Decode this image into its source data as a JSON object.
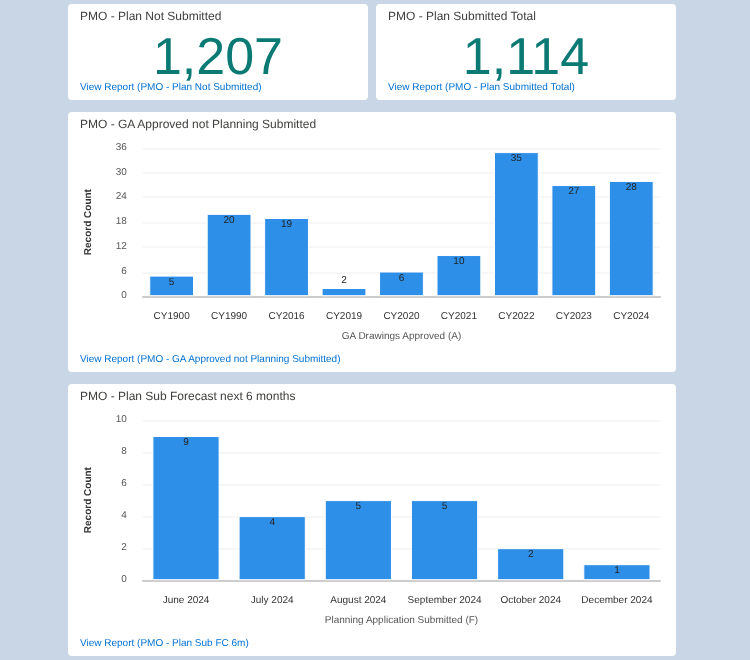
{
  "chart_data": [
    {
      "type": "other",
      "title": "PMO - Plan Not Submitted",
      "values": [
        1207
      ],
      "value_labels": [
        "1,207"
      ],
      "annotations": [
        "View Report (PMO - Plan Not Submitted)"
      ]
    },
    {
      "type": "other",
      "title": "PMO - Plan Submitted Total",
      "values": [
        1114
      ],
      "value_labels": [
        "1,114"
      ],
      "annotations": [
        "View Report (PMO - Plan Submitted Total)"
      ]
    },
    {
      "type": "bar",
      "title": "PMO - GA Approved not Planning Submitted",
      "categories": [
        "CY1900",
        "CY1990",
        "CY2016",
        "CY2019",
        "CY2020",
        "CY2021",
        "CY2022",
        "CY2023",
        "CY2024"
      ],
      "values": [
        5,
        20,
        19,
        2,
        6,
        10,
        35,
        27,
        28
      ],
      "color": "#2e8fe8",
      "ylim": [
        0,
        36
      ],
      "yticks": [
        0,
        6,
        12,
        18,
        24,
        30,
        36
      ],
      "xlabel": "GA Drawings Approved (A)",
      "ylabel": "Record Count",
      "grid": "y",
      "data_labels": true,
      "annotations": [
        "View Report (PMO - GA Approved not Planning Submitted)"
      ]
    },
    {
      "type": "bar",
      "title": "PMO - Plan Sub Forecast next 6 months",
      "categories": [
        "June 2024",
        "July 2024",
        "August 2024",
        "September 2024",
        "October 2024",
        "December 2024"
      ],
      "values": [
        9,
        4,
        5,
        5,
        2,
        1
      ],
      "color": "#2e8fe8",
      "ylim": [
        0,
        10
      ],
      "yticks": [
        0,
        2,
        4,
        6,
        8,
        10
      ],
      "xlabel": "Planning Application Submitted (F)",
      "ylabel": "Record Count",
      "grid": "y",
      "data_labels": true,
      "annotations": [
        "View Report (PMO - Plan Sub FC 6m)"
      ]
    }
  ]
}
